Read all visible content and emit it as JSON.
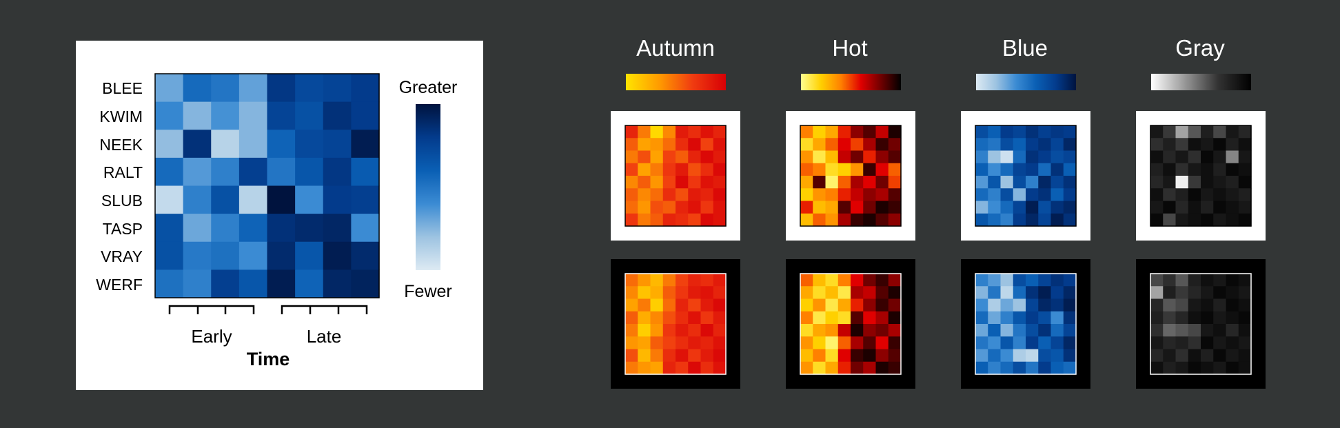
{
  "panel_main": {
    "rows": [
      "BLEE",
      "KWIM",
      "NEEK",
      "RALT",
      "SLUB",
      "TASP",
      "VRAY",
      "WERF"
    ],
    "legend_top": "Greater",
    "legend_bottom": "Fewer",
    "group_labels": [
      "Early",
      "Late"
    ],
    "xlabel": "Time"
  },
  "colormap_titles": [
    "Autumn",
    "Hot",
    "Blue",
    "Gray"
  ],
  "colors": {
    "background": "#333636",
    "panel_white": "#ffffff",
    "panel_black": "#000000",
    "blue_stops": [
      "#ddeaf3",
      "#9dc3e1",
      "#3b8bd3",
      "#0a5fb4",
      "#033b8c",
      "#00133e"
    ],
    "autumn_stops": [
      "#ffe400",
      "#ff9b00",
      "#f03c10",
      "#d70005"
    ],
    "hot_stops": [
      "#ffff90",
      "#ffd000",
      "#ff8000",
      "#e00000",
      "#700000",
      "#000000"
    ],
    "gray_stops": [
      "#ffffff",
      "#999999",
      "#333333",
      "#000000"
    ]
  },
  "chart_data": [
    {
      "type": "heatmap",
      "title": "",
      "xlabel": "Time",
      "ylabel": "",
      "y_categories": [
        "BLEE",
        "KWIM",
        "NEEK",
        "RALT",
        "SLUB",
        "TASP",
        "VRAY",
        "WERF"
      ],
      "x_groups": [
        "Early",
        "Late"
      ],
      "columns_per_group": 4,
      "colormap": "Blue",
      "legend": {
        "high": "Greater",
        "low": "Fewer"
      },
      "values": [
        [
          0.3,
          0.55,
          0.5,
          0.32,
          0.82,
          0.72,
          0.75,
          0.8
        ],
        [
          0.42,
          0.25,
          0.38,
          0.25,
          0.75,
          0.68,
          0.85,
          0.8
        ],
        [
          0.22,
          0.85,
          0.12,
          0.25,
          0.58,
          0.72,
          0.75,
          0.95
        ],
        [
          0.55,
          0.35,
          0.45,
          0.78,
          0.5,
          0.65,
          0.82,
          0.62
        ],
        [
          0.08,
          0.45,
          0.68,
          0.12,
          1.0,
          0.4,
          0.8,
          0.78
        ],
        [
          0.68,
          0.3,
          0.45,
          0.58,
          0.85,
          0.88,
          0.9,
          0.4
        ],
        [
          0.68,
          0.48,
          0.52,
          0.4,
          0.88,
          0.65,
          0.95,
          0.88
        ],
        [
          0.52,
          0.45,
          0.78,
          0.65,
          0.95,
          0.58,
          0.9,
          0.92
        ]
      ]
    },
    {
      "type": "heatmap",
      "title": "Autumn",
      "colormap": "Autumn",
      "frame": "white",
      "values": [
        [
          0.8,
          0.45,
          0.05,
          0.4,
          0.85,
          0.75,
          0.9,
          0.8
        ],
        [
          0.55,
          0.3,
          0.35,
          0.5,
          0.75,
          0.95,
          0.65,
          0.9
        ],
        [
          0.45,
          0.6,
          0.3,
          0.65,
          0.55,
          0.8,
          0.95,
          0.85
        ],
        [
          0.65,
          0.3,
          0.45,
          0.7,
          0.85,
          0.6,
          0.75,
          0.95
        ],
        [
          0.4,
          0.55,
          0.35,
          0.65,
          0.95,
          0.7,
          0.9,
          0.85
        ],
        [
          0.55,
          0.4,
          0.5,
          0.75,
          0.6,
          0.85,
          0.8,
          0.95
        ],
        [
          0.5,
          0.35,
          0.6,
          0.55,
          0.8,
          0.9,
          0.7,
          0.9
        ],
        [
          0.7,
          0.45,
          0.55,
          0.8,
          0.75,
          0.65,
          0.95,
          0.9
        ]
      ]
    },
    {
      "type": "heatmap",
      "title": "Hot",
      "colormap": "Hot",
      "frame": "white",
      "values": [
        [
          0.4,
          0.2,
          0.3,
          0.55,
          0.75,
          0.85,
          0.65,
          0.95
        ],
        [
          0.15,
          0.3,
          0.45,
          0.6,
          0.5,
          0.7,
          0.9,
          0.8
        ],
        [
          0.35,
          0.1,
          0.25,
          0.65,
          0.8,
          0.55,
          0.75,
          0.85
        ],
        [
          0.45,
          0.4,
          0.15,
          0.2,
          0.35,
          0.9,
          0.6,
          0.45
        ],
        [
          0.3,
          0.85,
          0.05,
          0.45,
          0.7,
          0.6,
          0.8,
          0.5
        ],
        [
          0.2,
          0.35,
          0.4,
          0.55,
          0.65,
          0.75,
          0.7,
          0.85
        ],
        [
          0.55,
          0.25,
          0.3,
          0.85,
          0.6,
          0.8,
          0.95,
          0.9
        ],
        [
          0.25,
          0.45,
          0.35,
          0.7,
          0.9,
          0.95,
          0.85,
          0.75
        ]
      ]
    },
    {
      "type": "heatmap",
      "title": "Blue",
      "colormap": "Blue",
      "frame": "white",
      "values": [
        [
          0.7,
          0.6,
          0.8,
          0.75,
          0.85,
          0.78,
          0.82,
          0.8
        ],
        [
          0.55,
          0.5,
          0.7,
          0.6,
          0.8,
          0.85,
          0.75,
          0.9
        ],
        [
          0.45,
          0.2,
          0.05,
          0.55,
          0.85,
          0.8,
          0.7,
          0.75
        ],
        [
          0.6,
          0.4,
          0.55,
          0.75,
          0.8,
          0.55,
          0.85,
          0.6
        ],
        [
          0.35,
          0.65,
          0.2,
          0.7,
          0.45,
          0.9,
          0.75,
          0.85
        ],
        [
          0.55,
          0.45,
          0.7,
          0.25,
          0.8,
          0.85,
          0.6,
          0.8
        ],
        [
          0.25,
          0.4,
          0.55,
          0.75,
          0.95,
          0.7,
          0.85,
          0.9
        ],
        [
          0.65,
          0.55,
          0.45,
          0.8,
          0.9,
          0.75,
          0.95,
          0.85
        ]
      ]
    },
    {
      "type": "heatmap",
      "title": "Gray",
      "colormap": "Gray",
      "frame": "white",
      "values": [
        [
          0.85,
          0.65,
          0.3,
          0.55,
          0.8,
          0.6,
          0.85,
          0.75
        ],
        [
          0.7,
          0.8,
          0.65,
          0.9,
          0.85,
          0.95,
          0.8,
          0.9
        ],
        [
          0.9,
          0.75,
          0.85,
          0.7,
          0.95,
          0.85,
          0.4,
          0.85
        ],
        [
          0.8,
          0.9,
          0.7,
          0.85,
          0.9,
          0.8,
          0.95,
          0.9
        ],
        [
          0.75,
          0.85,
          0.05,
          0.65,
          0.9,
          0.85,
          0.8,
          0.95
        ],
        [
          0.9,
          0.7,
          0.8,
          0.95,
          0.85,
          0.9,
          0.85,
          0.8
        ],
        [
          0.85,
          0.95,
          0.75,
          0.9,
          0.8,
          0.95,
          0.9,
          0.85
        ],
        [
          0.95,
          0.6,
          0.85,
          0.9,
          0.95,
          0.85,
          0.9,
          0.95
        ]
      ]
    },
    {
      "type": "heatmap",
      "title": "Autumn",
      "colormap": "Autumn",
      "frame": "black",
      "values": [
        [
          0.5,
          0.35,
          0.2,
          0.45,
          0.65,
          0.8,
          0.75,
          0.85
        ],
        [
          0.4,
          0.15,
          0.25,
          0.55,
          0.7,
          0.85,
          0.9,
          0.8
        ],
        [
          0.3,
          0.45,
          0.1,
          0.5,
          0.8,
          0.65,
          0.85,
          0.95
        ],
        [
          0.55,
          0.25,
          0.4,
          0.6,
          0.75,
          0.9,
          0.7,
          0.85
        ],
        [
          0.45,
          0.1,
          0.35,
          0.7,
          0.85,
          0.75,
          0.95,
          0.8
        ],
        [
          0.35,
          0.3,
          0.55,
          0.65,
          0.75,
          0.85,
          0.8,
          0.9
        ],
        [
          0.6,
          0.2,
          0.45,
          0.75,
          0.9,
          0.7,
          0.85,
          0.95
        ],
        [
          0.45,
          0.35,
          0.3,
          0.8,
          0.7,
          0.95,
          0.75,
          0.9
        ]
      ]
    },
    {
      "type": "heatmap",
      "title": "Hot",
      "colormap": "Hot",
      "frame": "black",
      "values": [
        [
          0.45,
          0.25,
          0.15,
          0.4,
          0.6,
          0.8,
          0.9,
          0.75
        ],
        [
          0.3,
          0.15,
          0.25,
          0.1,
          0.7,
          0.65,
          0.85,
          0.95
        ],
        [
          0.2,
          0.35,
          0.1,
          0.3,
          0.55,
          0.75,
          0.9,
          0.8
        ],
        [
          0.4,
          0.1,
          0.2,
          0.15,
          0.85,
          0.6,
          0.7,
          0.95
        ],
        [
          0.15,
          0.3,
          0.35,
          0.65,
          0.95,
          0.75,
          0.8,
          0.7
        ],
        [
          0.35,
          0.2,
          0.05,
          0.45,
          0.7,
          0.85,
          0.6,
          0.9
        ],
        [
          0.25,
          0.4,
          0.15,
          0.6,
          0.9,
          0.95,
          0.75,
          0.85
        ],
        [
          0.35,
          0.15,
          0.3,
          0.55,
          0.8,
          0.7,
          0.95,
          0.9
        ]
      ]
    },
    {
      "type": "heatmap",
      "title": "Blue",
      "colormap": "Blue",
      "frame": "black",
      "values": [
        [
          0.45,
          0.35,
          0.2,
          0.7,
          0.6,
          0.75,
          0.85,
          0.8
        ],
        [
          0.25,
          0.5,
          0.1,
          0.55,
          0.85,
          0.95,
          0.8,
          0.9
        ],
        [
          0.4,
          0.15,
          0.3,
          0.2,
          0.75,
          0.9,
          0.85,
          0.95
        ],
        [
          0.55,
          0.3,
          0.45,
          0.65,
          0.8,
          0.7,
          0.4,
          0.85
        ],
        [
          0.3,
          0.6,
          0.25,
          0.5,
          0.7,
          0.85,
          0.55,
          0.75
        ],
        [
          0.5,
          0.4,
          0.65,
          0.45,
          0.8,
          0.6,
          0.75,
          0.9
        ],
        [
          0.35,
          0.55,
          0.4,
          0.15,
          0.1,
          0.7,
          0.65,
          0.85
        ],
        [
          0.6,
          0.45,
          0.55,
          0.7,
          0.5,
          0.8,
          0.6,
          0.55
        ]
      ]
    },
    {
      "type": "heatmap",
      "title": "Gray",
      "colormap": "Gray",
      "frame": "black",
      "values": [
        [
          0.6,
          0.7,
          0.55,
          0.8,
          0.9,
          0.85,
          0.95,
          0.9
        ],
        [
          0.3,
          0.8,
          0.65,
          0.75,
          0.85,
          0.95,
          0.9,
          0.85
        ],
        [
          0.75,
          0.55,
          0.6,
          0.85,
          0.9,
          0.8,
          0.95,
          0.9
        ],
        [
          0.8,
          0.65,
          0.75,
          0.9,
          0.95,
          0.85,
          0.9,
          0.95
        ],
        [
          0.7,
          0.5,
          0.55,
          0.6,
          0.85,
          0.9,
          0.75,
          0.9
        ],
        [
          0.85,
          0.75,
          0.8,
          0.7,
          0.95,
          0.85,
          0.9,
          0.85
        ],
        [
          0.75,
          0.85,
          0.7,
          0.9,
          0.8,
          0.95,
          0.85,
          0.9
        ],
        [
          0.9,
          0.8,
          0.85,
          0.95,
          0.9,
          0.85,
          0.95,
          0.9
        ]
      ]
    }
  ]
}
